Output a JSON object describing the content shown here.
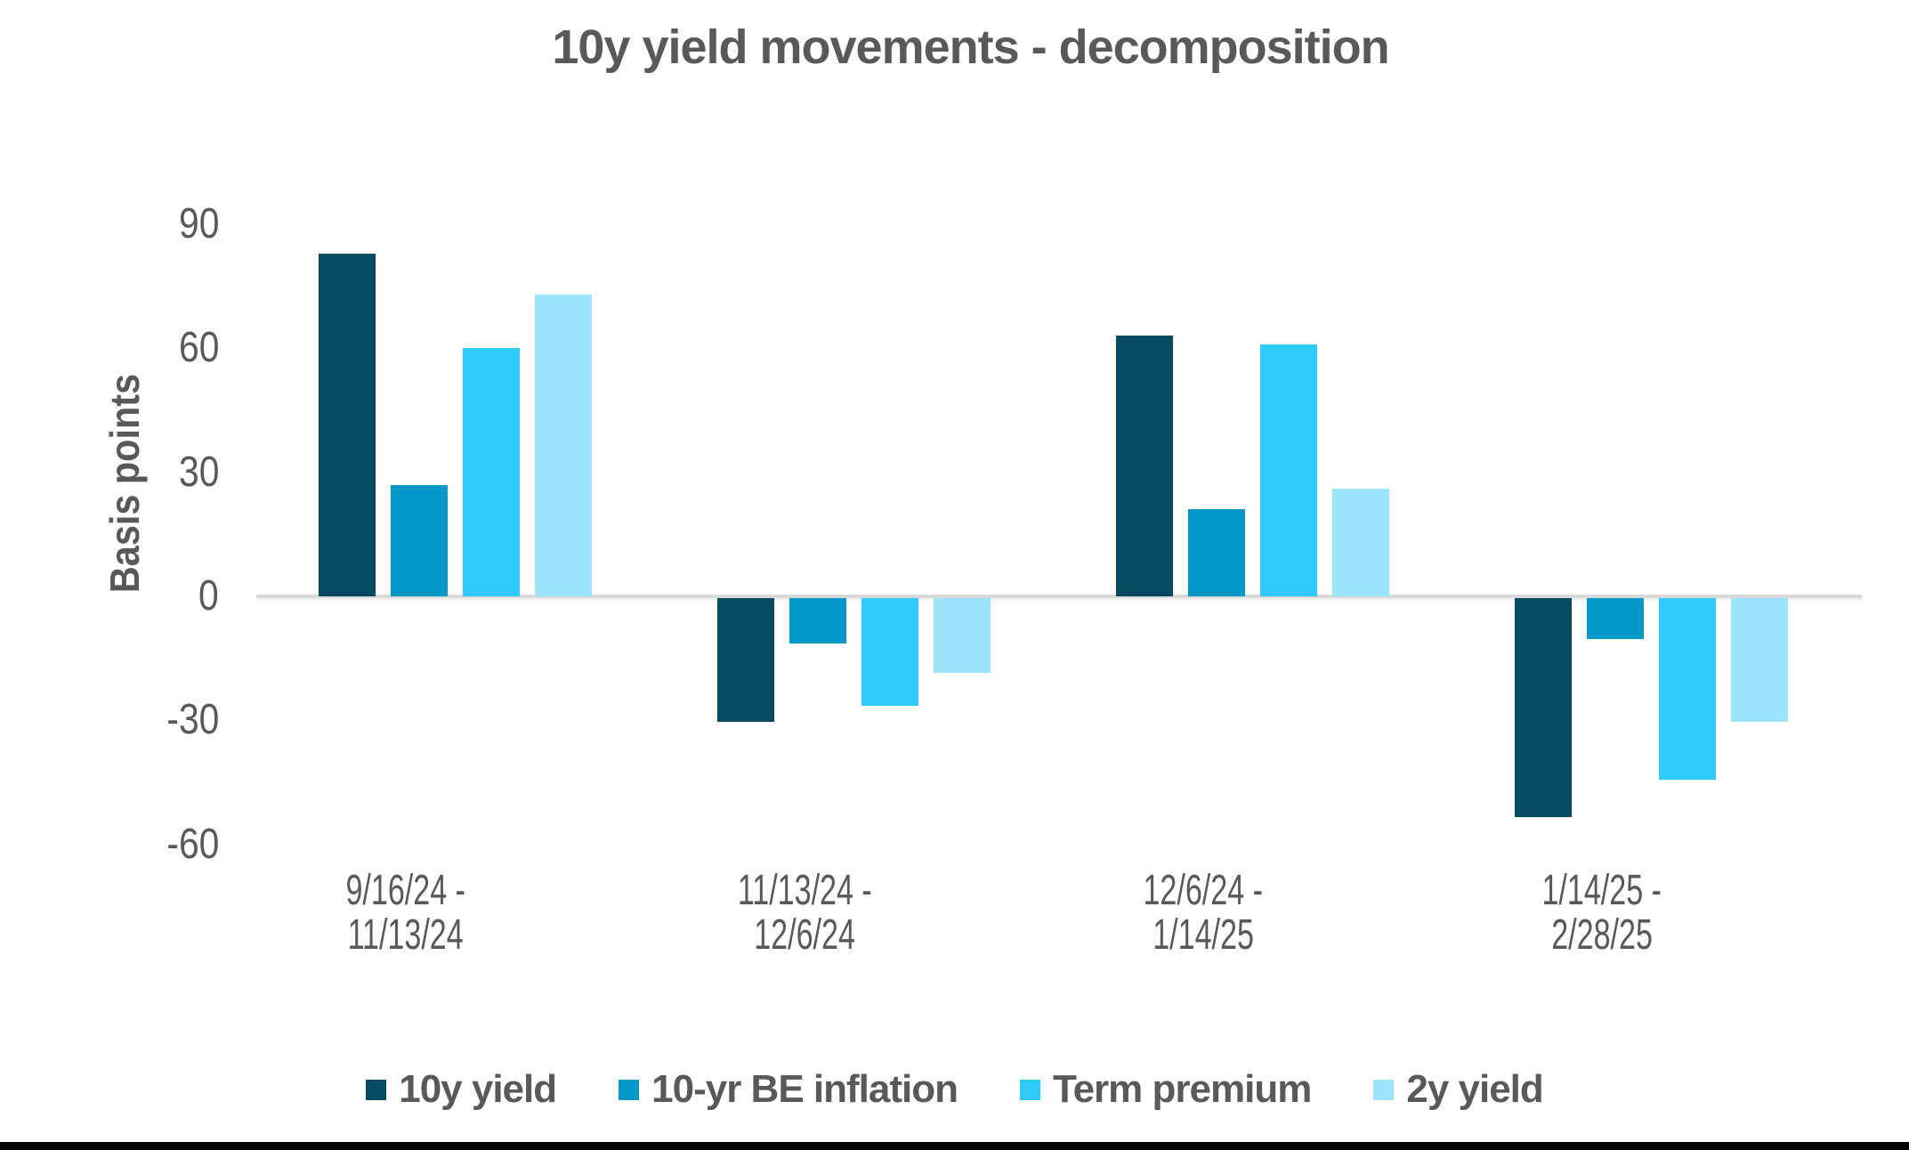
{
  "chart_data": {
    "type": "bar",
    "title": "10y yield movements - decomposition",
    "ylabel": "Basis points",
    "categories": [
      "9/16/24 - 11/13/24",
      "11/13/24 - 12/6/24",
      "12/6/24 - 1/14/25",
      "1/14/25 - 2/28/25"
    ],
    "category_lines": [
      [
        "9/16/24 -",
        "11/13/24"
      ],
      [
        "11/13/24 -",
        "12/6/24"
      ],
      [
        "12/6/24 -",
        "1/14/25"
      ],
      [
        "1/14/25 -",
        "2/28/25"
      ]
    ],
    "series": [
      {
        "name": "10y yield",
        "color": "#084A5F",
        "values": [
          83,
          -30,
          63,
          -53
        ]
      },
      {
        "name": "10-yr BE inflation",
        "color": "#0398C8",
        "values": [
          27,
          -11,
          21,
          -10
        ]
      },
      {
        "name": "Term premium",
        "color": "#2FCAFA",
        "values": [
          60,
          -26,
          61,
          -44
        ]
      },
      {
        "name": "2y yield",
        "color": "#9CE4FB",
        "values": [
          73,
          -18,
          26,
          -30
        ]
      }
    ],
    "yticks": [
      90,
      60,
      30,
      0,
      -30,
      -60
    ],
    "ylim": [
      -75,
      105
    ],
    "unit": "bp",
    "grid": false,
    "legend_position": "bottom",
    "axis_color": "#D9D9D9",
    "text_color": "#595959",
    "background_color": "#FFFFFF"
  }
}
